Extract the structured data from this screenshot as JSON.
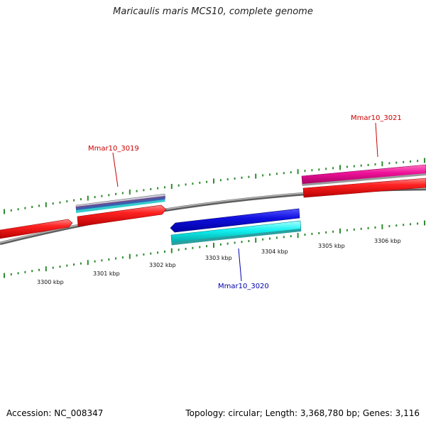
{
  "title": "Maricaulis maris MCS10, complete genome",
  "footer": {
    "accession": "Accession: NC_008347",
    "summary": "Topology: circular; Length: 3,368,780 bp; Genes: 3,116"
  },
  "tick_labels": [
    {
      "kbp": 3300,
      "text": "3300 kbp"
    },
    {
      "kbp": 3301,
      "text": "3301 kbp"
    },
    {
      "kbp": 3302,
      "text": "3302 kbp"
    },
    {
      "kbp": 3303,
      "text": "3303 kbp"
    },
    {
      "kbp": 3304,
      "text": "3304 kbp"
    },
    {
      "kbp": 3305,
      "text": "3305 kbp"
    },
    {
      "kbp": 3306,
      "text": "3306 kbp"
    }
  ],
  "gene_labels": [
    {
      "text": "Mmar10_3019",
      "color": "#cc0000"
    },
    {
      "text": "Mmar10_3020",
      "color": "#0000aa"
    },
    {
      "text": "Mmar10_3021",
      "color": "#cc0000"
    }
  ],
  "colors": {
    "backbone": "#8a8a8a",
    "ticks": "#2e8b2e",
    "gene_red": "#ee1111",
    "gene_blue": "#1111dd",
    "gene_cyan": "#11eeee",
    "gene_magenta": "#ee1199"
  }
}
